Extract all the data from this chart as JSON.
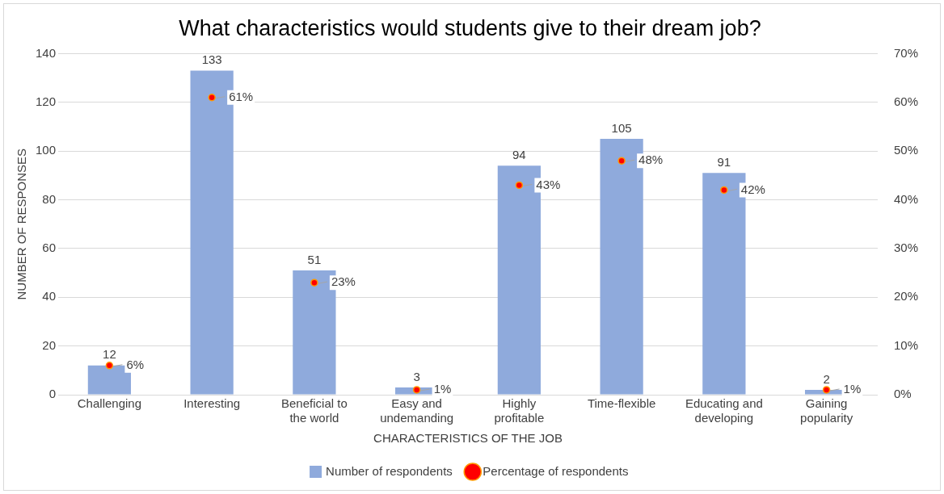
{
  "chart_data": {
    "type": "bar",
    "title": "What characteristics would students give to their dream job?",
    "xlabel": "CHARACTERISTICS OF THE JOB",
    "ylabel": "NUMBER OF RESPONSES",
    "categories": [
      "Challenging",
      "Interesting",
      "Beneficial to the world",
      "Easy and undemanding",
      "Highly profitable",
      "Time-flexible",
      "Educating and developing",
      "Gaining popularity"
    ],
    "series": [
      {
        "name": "Number of respondents",
        "color": "#8faadc",
        "values": [
          12,
          133,
          51,
          3,
          94,
          105,
          91,
          2
        ],
        "value_labels": [
          "12",
          "133",
          "51",
          "3",
          "94",
          "105",
          "91",
          "2"
        ]
      },
      {
        "name": "Percentage of respondents",
        "type": "scatter",
        "axis": "y2",
        "color": "#ff0000",
        "values": [
          6,
          61,
          23,
          1,
          43,
          48,
          42,
          1
        ],
        "value_labels": [
          "6%",
          "61%",
          "23%",
          "1%",
          "43%",
          "48%",
          "42%",
          "1%"
        ]
      }
    ],
    "ylim": [
      0,
      140
    ],
    "yticks": [
      0,
      20,
      40,
      60,
      80,
      100,
      120,
      140
    ],
    "y2lim": [
      0,
      70
    ],
    "y2ticks": [
      {
        "value": 0,
        "label": "0%"
      },
      {
        "value": 10,
        "label": "10%"
      },
      {
        "value": 20,
        "label": "20%"
      },
      {
        "value": 30,
        "label": "30%"
      },
      {
        "value": 40,
        "label": "40%"
      },
      {
        "value": 50,
        "label": "50%"
      },
      {
        "value": 60,
        "label": "60%"
      },
      {
        "value": 70,
        "label": "70%"
      }
    ],
    "grid": "y",
    "legend": "bottom",
    "marker": "circle"
  }
}
